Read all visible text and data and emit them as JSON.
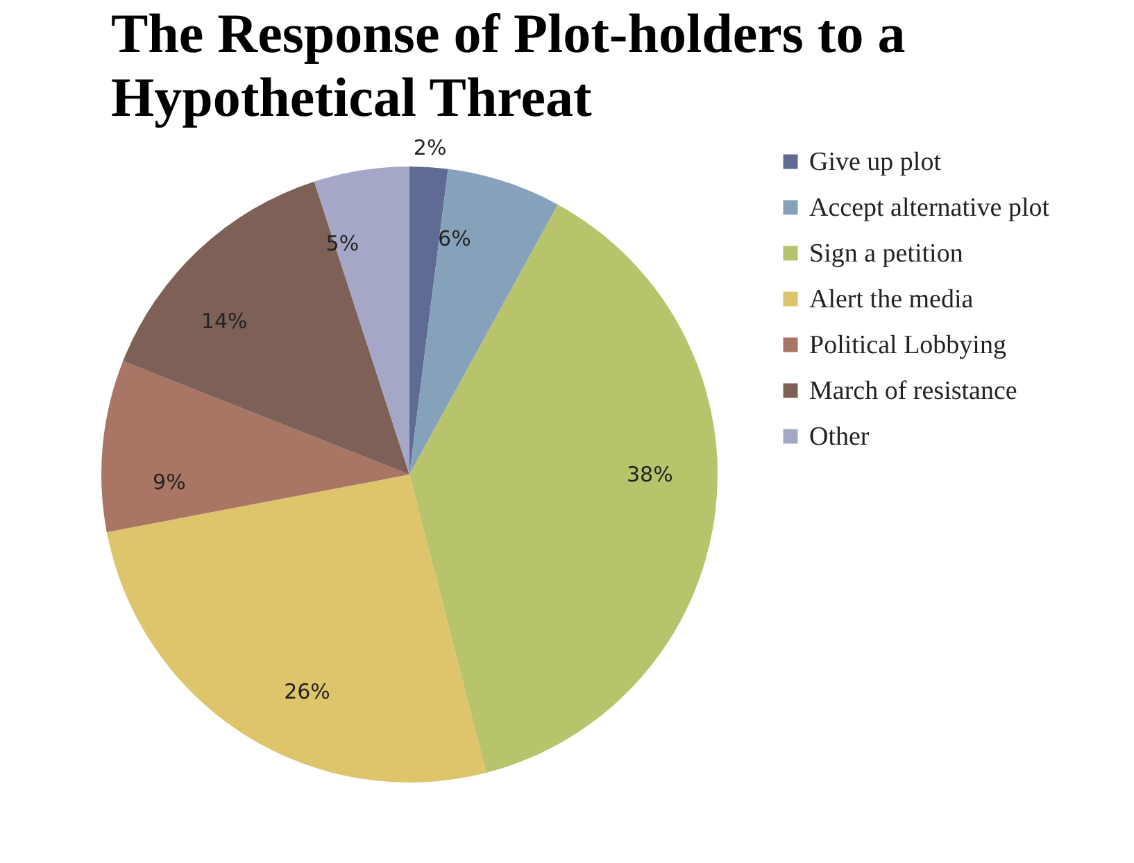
{
  "chart_data": {
    "type": "pie",
    "title": "The Response of Plot-holders to a Hypothetical Threat",
    "categories": [
      "Give up plot",
      "Accept alternative plot",
      "Sign a petition",
      "Alert the media",
      "Political Lobbying",
      "March of resistance",
      "Other"
    ],
    "values": [
      2,
      6,
      38,
      26,
      9,
      14,
      5
    ],
    "value_labels": [
      "2%",
      "6%",
      "38%",
      "26%",
      "9%",
      "14%",
      "5%"
    ],
    "colors": [
      "#5f6b94",
      "#86a2bb",
      "#b8c46c",
      "#dec46a",
      "#a97565",
      "#7d6158",
      "#a4a8c6"
    ],
    "legend": "right"
  }
}
